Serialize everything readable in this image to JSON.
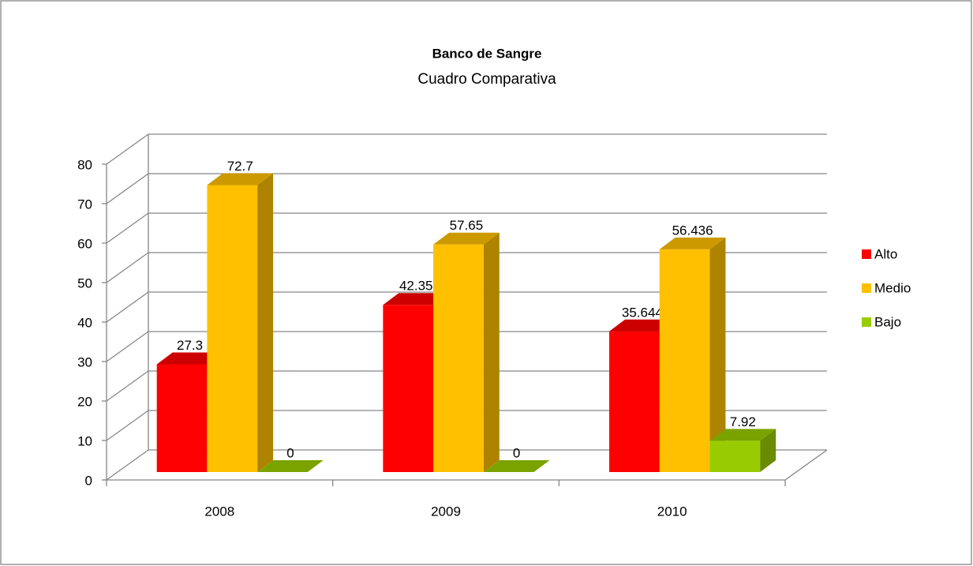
{
  "chart_data": {
    "type": "bar3d",
    "title": "Banco de Sangre",
    "subtitle": "Cuadro Comparativa",
    "categories": [
      "2008",
      "2009",
      "2010"
    ],
    "series": [
      {
        "name": "Alto",
        "color": "#ff0000",
        "values": [
          27.3,
          42.35,
          35.644
        ]
      },
      {
        "name": "Medio",
        "color": "#ffc000",
        "values": [
          72.7,
          57.65,
          56.436
        ]
      },
      {
        "name": "Bajo",
        "color": "#99cc00",
        "values": [
          0,
          0,
          7.92
        ]
      }
    ],
    "ylim": [
      0,
      80
    ],
    "yticks": [
      0,
      10,
      20,
      30,
      40,
      50,
      60,
      70,
      80
    ],
    "grid": true,
    "legend": "right"
  }
}
